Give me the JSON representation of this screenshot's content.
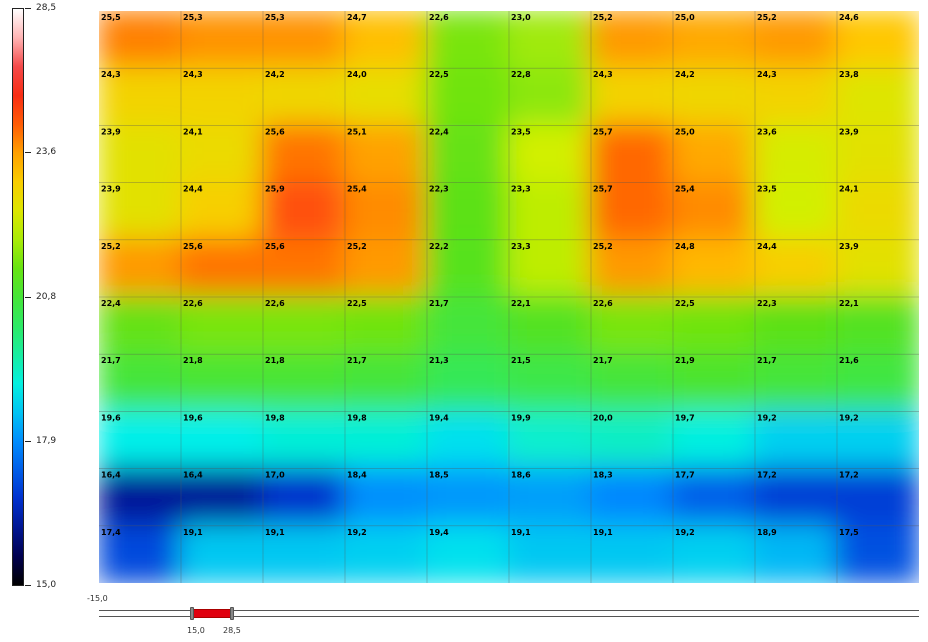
{
  "colorbar": {
    "labels": [
      "28,5",
      "23,6",
      "20,8",
      "17,9",
      "15,0"
    ],
    "min": 15.0,
    "max": 28.5
  },
  "slider": {
    "min_label": "-15,0",
    "low_label": "15,0",
    "high_label": "28,5"
  },
  "chart_data": {
    "type": "heatmap",
    "title": "",
    "xlabel": "",
    "ylabel": "",
    "value_range": [
      15.0,
      28.5
    ],
    "rows": [
      [
        "25,5",
        "25,3",
        "25,3",
        "24,7",
        "22,6",
        "23,0",
        "25,2",
        "25,0",
        "25,2",
        "24,6"
      ],
      [
        "24,3",
        "24,3",
        "24,2",
        "24,0",
        "22,5",
        "22,8",
        "24,3",
        "24,2",
        "24,3",
        "23,8"
      ],
      [
        "23,9",
        "24,1",
        "25,6",
        "25,1",
        "22,4",
        "23,5",
        "25,7",
        "25,0",
        "23,6",
        "23,9"
      ],
      [
        "23,9",
        "24,4",
        "25,9",
        "25,4",
        "22,3",
        "23,3",
        "25,7",
        "25,4",
        "23,5",
        "24,1"
      ],
      [
        "25,2",
        "25,6",
        "25,6",
        "25,2",
        "22,2",
        "23,3",
        "25,2",
        "24,8",
        "24,4",
        "23,9"
      ],
      [
        "22,4",
        "22,6",
        "22,6",
        "22,5",
        "21,7",
        "22,1",
        "22,6",
        "22,5",
        "22,3",
        "22,1"
      ],
      [
        "21,7",
        "21,8",
        "21,8",
        "21,7",
        "21,3",
        "21,5",
        "21,7",
        "21,9",
        "21,7",
        "21,6"
      ],
      [
        "19,6",
        "19,6",
        "19,8",
        "19,8",
        "19,4",
        "19,9",
        "20,0",
        "19,7",
        "19,2",
        "19,2"
      ],
      [
        "16,4",
        "16,4",
        "17,0",
        "18,4",
        "18,5",
        "18,6",
        "18,3",
        "17,7",
        "17,2",
        "17,2"
      ],
      [
        "17,4",
        "19,1",
        "19,1",
        "19,2",
        "19,4",
        "19,1",
        "19,1",
        "19,2",
        "18,9",
        "17,5"
      ]
    ]
  }
}
